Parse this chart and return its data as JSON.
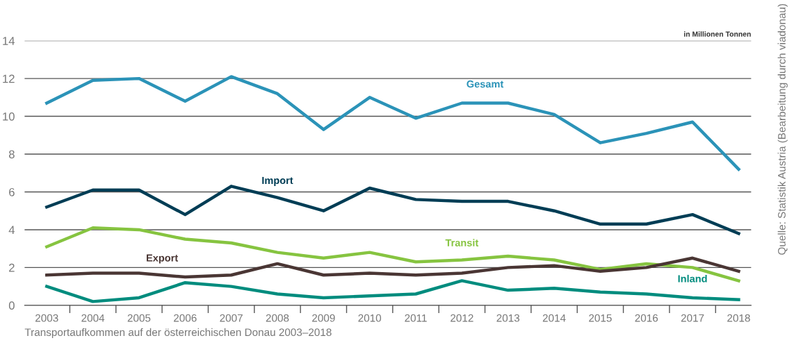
{
  "chart_data": {
    "type": "line",
    "ylabel": "in Millionen Tonnen",
    "categories": [
      "2003",
      "2004",
      "2005",
      "2006",
      "2007",
      "2008",
      "2009",
      "2010",
      "2011",
      "2012",
      "2013",
      "2014",
      "2015",
      "2016",
      "2017",
      "2018"
    ],
    "series": [
      {
        "name": "Gesamt",
        "color": "#2b93b8",
        "values": [
          10.7,
          11.9,
          12.0,
          10.8,
          12.1,
          11.2,
          9.3,
          11.0,
          9.9,
          10.7,
          10.7,
          10.1,
          8.6,
          9.1,
          9.7,
          7.2
        ]
      },
      {
        "name": "Import",
        "color": "#003d55",
        "values": [
          5.2,
          6.1,
          6.1,
          4.8,
          6.3,
          5.7,
          5.0,
          6.2,
          5.6,
          5.5,
          5.5,
          5.0,
          4.3,
          4.3,
          4.8,
          3.8
        ]
      },
      {
        "name": "Transit",
        "color": "#86c440",
        "values": [
          3.1,
          4.1,
          4.0,
          3.5,
          3.3,
          2.8,
          2.5,
          2.8,
          2.3,
          2.4,
          2.6,
          2.4,
          1.9,
          2.2,
          2.0,
          1.3
        ]
      },
      {
        "name": "Export",
        "color": "#4a3634",
        "values": [
          1.6,
          1.7,
          1.7,
          1.5,
          1.6,
          2.2,
          1.6,
          1.7,
          1.6,
          1.7,
          2.0,
          2.1,
          1.8,
          2.0,
          2.5,
          1.8
        ]
      },
      {
        "name": "Inland",
        "color": "#008c7e",
        "values": [
          1.0,
          0.2,
          0.4,
          1.2,
          1.0,
          0.6,
          0.4,
          0.5,
          0.6,
          1.3,
          0.8,
          0.9,
          0.7,
          0.6,
          0.4,
          0.3
        ]
      }
    ],
    "ylim": [
      0,
      14
    ],
    "yticks": [
      0,
      2,
      4,
      6,
      8,
      10,
      12,
      14
    ],
    "grid": "y",
    "legend": false,
    "marker": "none",
    "line_style": "solid",
    "annotations": [
      "Transportaufkommen auf der österreichischen Donau 2003–2018",
      "Quelle: Statistik Austria (Bearbeitung durch viadonau)"
    ]
  }
}
